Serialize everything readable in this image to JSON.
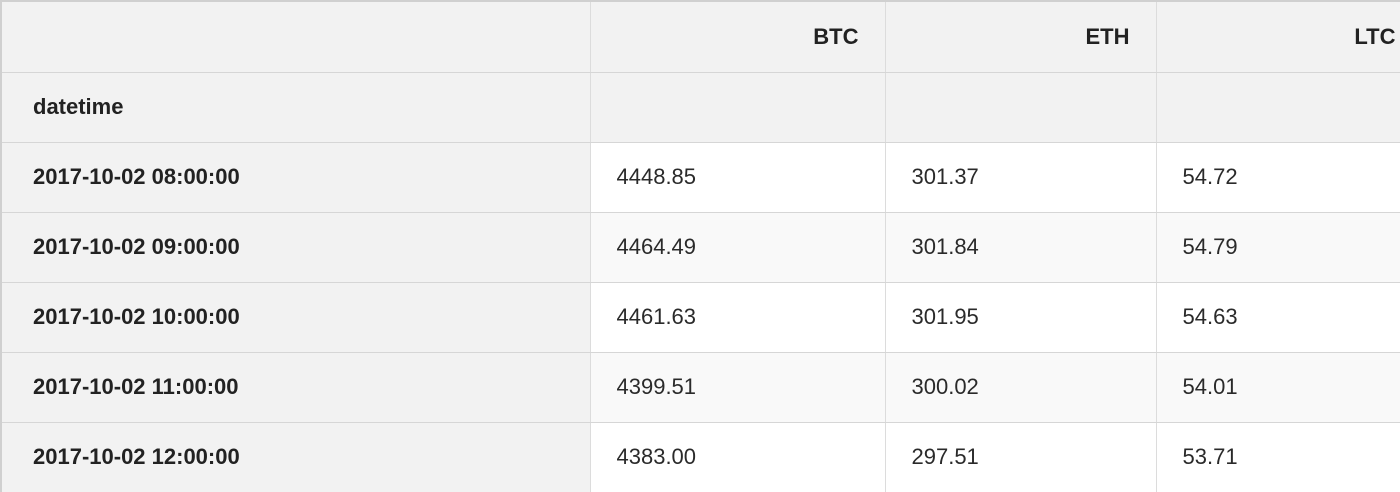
{
  "table": {
    "columns": [
      "BTC",
      "ETH",
      "LTC"
    ],
    "index_name": "datetime",
    "rows": [
      {
        "index": "2017-10-02 08:00:00",
        "values": [
          "4448.85",
          "301.37",
          "54.72"
        ]
      },
      {
        "index": "2017-10-02 09:00:00",
        "values": [
          "4464.49",
          "301.84",
          "54.79"
        ]
      },
      {
        "index": "2017-10-02 10:00:00",
        "values": [
          "4461.63",
          "301.95",
          "54.63"
        ]
      },
      {
        "index": "2017-10-02 11:00:00",
        "values": [
          "4399.51",
          "300.02",
          "54.01"
        ]
      },
      {
        "index": "2017-10-02 12:00:00",
        "values": [
          "4383.00",
          "297.51",
          "53.71"
        ]
      }
    ]
  }
}
